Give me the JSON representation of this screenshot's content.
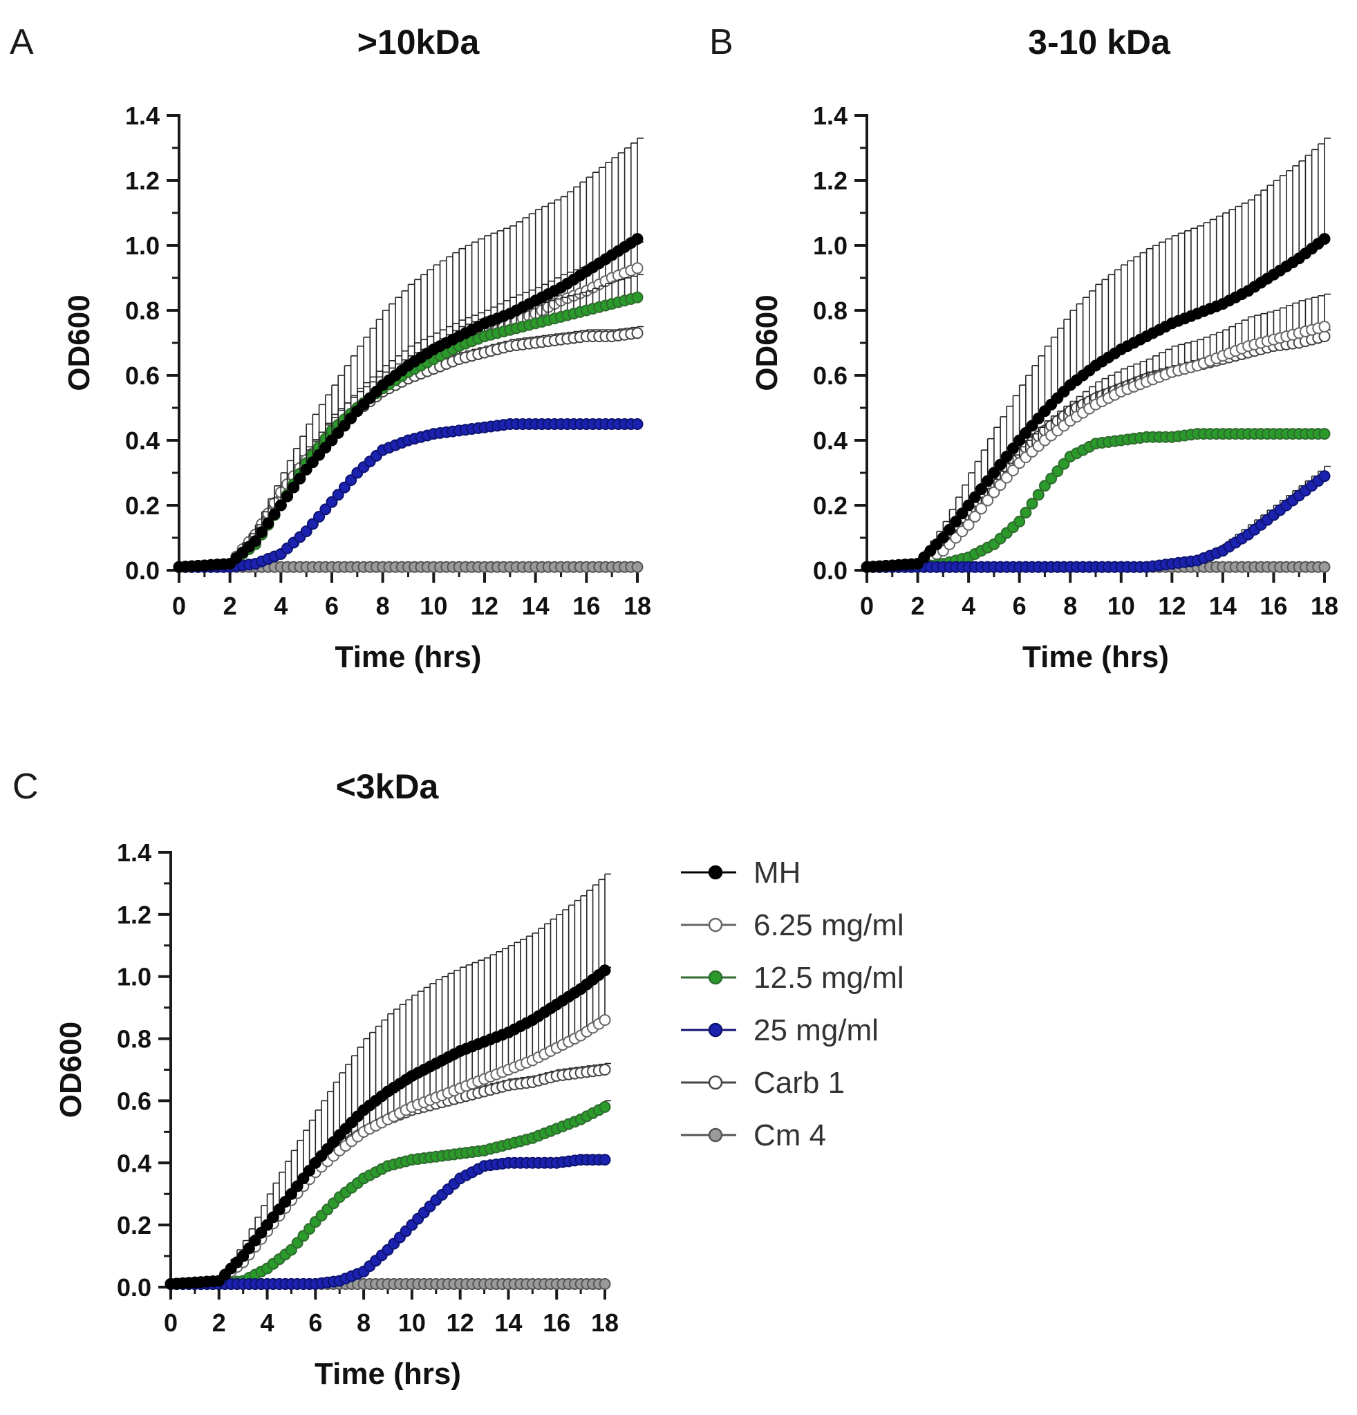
{
  "colors": {
    "MH": "#000000",
    "6.25 mg/ml": "#ffffff",
    "12.5 mg/ml": "#2a9a2a",
    "25 mg/ml": "#1c22b0",
    "Carb 1": "#ffffff",
    "Cm 4": "#9a9a9a",
    "axis": "#1a1a1a"
  },
  "legend": {
    "items": [
      {
        "label": "MH",
        "marker": "filled-circle",
        "color": "#000000"
      },
      {
        "label": "6.25 mg/ml",
        "marker": "open-circle",
        "color": "#ffffff"
      },
      {
        "label": "12.5 mg/ml",
        "marker": "filled-circle",
        "color": "#2a9a2a"
      },
      {
        "label": "25 mg/ml",
        "marker": "filled-circle",
        "color": "#1c22b0"
      },
      {
        "label": "Carb 1",
        "marker": "open-circle",
        "color": "#ffffff"
      },
      {
        "label": "Cm 4",
        "marker": "filled-circle",
        "color": "#9a9a9a"
      }
    ]
  },
  "chart_data": [
    {
      "type": "line",
      "panel": "A",
      "title": ">10kDa",
      "xlabel": "Time (hrs)",
      "ylabel": "OD600",
      "xlim": [
        0,
        18
      ],
      "ylim": [
        0,
        1.4
      ],
      "xticks": [
        "0",
        "2",
        "4",
        "6",
        "8",
        "10",
        "12",
        "14",
        "16",
        "18"
      ],
      "yticks": [
        "0.0",
        "0.2",
        "0.4",
        "0.6",
        "0.8",
        "1.0",
        "1.2",
        "1.4"
      ],
      "x": [
        0,
        2,
        3,
        4,
        5,
        6,
        7,
        8,
        9,
        10,
        11,
        12,
        13,
        14,
        15,
        16,
        17,
        18
      ],
      "series": [
        {
          "name": "MH",
          "values": [
            0.01,
            0.02,
            0.09,
            0.2,
            0.31,
            0.4,
            0.49,
            0.57,
            0.63,
            0.68,
            0.72,
            0.76,
            0.79,
            0.83,
            0.87,
            0.92,
            0.97,
            1.02
          ],
          "err": [
            0,
            0.01,
            0.05,
            0.1,
            0.14,
            0.17,
            0.2,
            0.23,
            0.25,
            0.26,
            0.27,
            0.27,
            0.27,
            0.28,
            0.28,
            0.29,
            0.3,
            0.31
          ]
        },
        {
          "name": "6.25 mg/ml",
          "values": [
            0.01,
            0.02,
            0.11,
            0.24,
            0.34,
            0.42,
            0.5,
            0.56,
            0.61,
            0.65,
            0.69,
            0.72,
            0.76,
            0.79,
            0.83,
            0.86,
            0.9,
            0.93
          ],
          "err": [
            0,
            0.01,
            0.02,
            0.03,
            0.04,
            0.05,
            0.06,
            0.07,
            0.08,
            0.08,
            0.08,
            0.08,
            0.08,
            0.08,
            0.08,
            0.08,
            0.08,
            0.08
          ]
        },
        {
          "name": "12.5 mg/ml",
          "values": [
            0.01,
            0.02,
            0.08,
            0.2,
            0.33,
            0.43,
            0.5,
            0.56,
            0.61,
            0.65,
            0.69,
            0.72,
            0.74,
            0.76,
            0.78,
            0.8,
            0.82,
            0.84
          ],
          "err": [
            0,
            0.01,
            0.02,
            0.03,
            0.04,
            0.05,
            0.05,
            0.05,
            0.05,
            0.05,
            0.06,
            0.06,
            0.06,
            0.06,
            0.06,
            0.06,
            0.07,
            0.07
          ]
        },
        {
          "name": "25 mg/ml",
          "values": [
            0.01,
            0.01,
            0.02,
            0.05,
            0.12,
            0.21,
            0.3,
            0.37,
            0.4,
            0.42,
            0.43,
            0.44,
            0.45,
            0.45,
            0.45,
            0.45,
            0.45,
            0.45
          ],
          "err": [
            0,
            0,
            0,
            0,
            0,
            0,
            0,
            0,
            0,
            0,
            0,
            0,
            0,
            0,
            0,
            0,
            0,
            0
          ]
        },
        {
          "name": "Carb 1",
          "values": [
            0.01,
            0.02,
            0.1,
            0.22,
            0.32,
            0.41,
            0.49,
            0.55,
            0.59,
            0.62,
            0.65,
            0.67,
            0.69,
            0.7,
            0.71,
            0.72,
            0.72,
            0.73
          ],
          "err": [
            0,
            0.01,
            0.01,
            0.02,
            0.02,
            0.02,
            0.02,
            0.02,
            0.02,
            0.02,
            0.02,
            0.02,
            0.02,
            0.02,
            0.02,
            0.02,
            0.02,
            0.02
          ]
        },
        {
          "name": "Cm 4",
          "values": [
            0.01,
            0.01,
            0.01,
            0.01,
            0.01,
            0.01,
            0.01,
            0.01,
            0.01,
            0.01,
            0.01,
            0.01,
            0.01,
            0.01,
            0.01,
            0.01,
            0.01,
            0.01
          ],
          "err": [
            0,
            0,
            0,
            0,
            0,
            0,
            0,
            0,
            0,
            0,
            0,
            0,
            0,
            0,
            0,
            0,
            0,
            0
          ]
        }
      ]
    },
    {
      "type": "line",
      "panel": "B",
      "title": "3-10 kDa",
      "xlabel": "Time (hrs)",
      "ylabel": "OD600",
      "xlim": [
        0,
        18
      ],
      "ylim": [
        0,
        1.4
      ],
      "xticks": [
        "0",
        "2",
        "4",
        "6",
        "8",
        "10",
        "12",
        "14",
        "16",
        "18"
      ],
      "yticks": [
        "0.0",
        "0.2",
        "0.4",
        "0.6",
        "0.8",
        "1.0",
        "1.2",
        "1.4"
      ],
      "x": [
        0,
        2,
        3,
        4,
        5,
        6,
        7,
        8,
        9,
        10,
        11,
        12,
        13,
        14,
        15,
        16,
        17,
        18
      ],
      "series": [
        {
          "name": "MH",
          "values": [
            0.01,
            0.02,
            0.1,
            0.2,
            0.3,
            0.4,
            0.49,
            0.57,
            0.63,
            0.68,
            0.72,
            0.76,
            0.79,
            0.82,
            0.86,
            0.91,
            0.96,
            1.02
          ],
          "err": [
            0,
            0.01,
            0.05,
            0.1,
            0.14,
            0.17,
            0.2,
            0.23,
            0.25,
            0.26,
            0.27,
            0.27,
            0.27,
            0.28,
            0.28,
            0.29,
            0.3,
            0.31
          ]
        },
        {
          "name": "6.25 mg/ml",
          "values": [
            0.01,
            0.02,
            0.06,
            0.14,
            0.24,
            0.33,
            0.4,
            0.46,
            0.51,
            0.55,
            0.58,
            0.61,
            0.63,
            0.66,
            0.69,
            0.71,
            0.73,
            0.75
          ],
          "err": [
            0,
            0.01,
            0.02,
            0.03,
            0.04,
            0.05,
            0.06,
            0.06,
            0.07,
            0.07,
            0.07,
            0.08,
            0.08,
            0.08,
            0.09,
            0.09,
            0.1,
            0.1
          ]
        },
        {
          "name": "12.5 mg/ml",
          "values": [
            0.01,
            0.01,
            0.02,
            0.04,
            0.08,
            0.15,
            0.26,
            0.35,
            0.39,
            0.4,
            0.41,
            0.41,
            0.42,
            0.42,
            0.42,
            0.42,
            0.42,
            0.42
          ],
          "err": [
            0,
            0,
            0,
            0,
            0,
            0,
            0,
            0,
            0,
            0,
            0,
            0,
            0,
            0,
            0,
            0,
            0,
            0
          ]
        },
        {
          "name": "25 mg/ml",
          "values": [
            0.01,
            0.01,
            0.01,
            0.01,
            0.01,
            0.01,
            0.01,
            0.01,
            0.01,
            0.01,
            0.01,
            0.02,
            0.03,
            0.06,
            0.11,
            0.17,
            0.23,
            0.29
          ],
          "err": [
            0,
            0,
            0,
            0,
            0,
            0,
            0,
            0,
            0,
            0,
            0,
            0,
            0.01,
            0.02,
            0.03,
            0.03,
            0.03,
            0.03
          ]
        },
        {
          "name": "Carb 1",
          "values": [
            0.01,
            0.02,
            0.08,
            0.17,
            0.27,
            0.36,
            0.43,
            0.49,
            0.53,
            0.56,
            0.59,
            0.61,
            0.63,
            0.65,
            0.67,
            0.69,
            0.7,
            0.72
          ],
          "err": [
            0,
            0.01,
            0.01,
            0.02,
            0.02,
            0.02,
            0.02,
            0.02,
            0.02,
            0.02,
            0.02,
            0.02,
            0.02,
            0.02,
            0.02,
            0.02,
            0.02,
            0.02
          ]
        },
        {
          "name": "Cm 4",
          "values": [
            0.01,
            0.01,
            0.01,
            0.01,
            0.01,
            0.01,
            0.01,
            0.01,
            0.01,
            0.01,
            0.01,
            0.01,
            0.01,
            0.01,
            0.01,
            0.01,
            0.01,
            0.01
          ],
          "err": [
            0,
            0,
            0,
            0,
            0,
            0,
            0,
            0,
            0,
            0,
            0,
            0,
            0,
            0,
            0,
            0,
            0,
            0
          ]
        }
      ]
    },
    {
      "type": "line",
      "panel": "C",
      "title": "<3kDa",
      "xlabel": "Time (hrs)",
      "ylabel": "OD600",
      "xlim": [
        0,
        18
      ],
      "ylim": [
        0,
        1.4
      ],
      "xticks": [
        "0",
        "2",
        "4",
        "6",
        "8",
        "10",
        "12",
        "14",
        "16",
        "18"
      ],
      "yticks": [
        "0.0",
        "0.2",
        "0.4",
        "0.6",
        "0.8",
        "1.0",
        "1.2",
        "1.4"
      ],
      "x": [
        0,
        2,
        3,
        4,
        5,
        6,
        7,
        8,
        9,
        10,
        11,
        12,
        13,
        14,
        15,
        16,
        17,
        18
      ],
      "series": [
        {
          "name": "MH",
          "values": [
            0.01,
            0.02,
            0.1,
            0.2,
            0.3,
            0.4,
            0.49,
            0.57,
            0.63,
            0.68,
            0.72,
            0.76,
            0.79,
            0.82,
            0.86,
            0.91,
            0.96,
            1.02
          ],
          "err": [
            0,
            0.01,
            0.05,
            0.1,
            0.14,
            0.17,
            0.2,
            0.23,
            0.25,
            0.26,
            0.27,
            0.27,
            0.27,
            0.28,
            0.28,
            0.29,
            0.3,
            0.31
          ]
        },
        {
          "name": "6.25 mg/ml",
          "values": [
            0.01,
            0.02,
            0.08,
            0.18,
            0.28,
            0.37,
            0.44,
            0.5,
            0.54,
            0.58,
            0.61,
            0.64,
            0.67,
            0.7,
            0.73,
            0.77,
            0.81,
            0.86
          ],
          "err": [
            0,
            0.01,
            0.02,
            0.03,
            0.04,
            0.05,
            0.06,
            0.07,
            0.08,
            0.09,
            0.1,
            0.11,
            0.12,
            0.13,
            0.14,
            0.15,
            0.16,
            0.17
          ]
        },
        {
          "name": "12.5 mg/ml",
          "values": [
            0.01,
            0.01,
            0.02,
            0.06,
            0.12,
            0.21,
            0.29,
            0.35,
            0.39,
            0.41,
            0.42,
            0.43,
            0.44,
            0.46,
            0.48,
            0.51,
            0.54,
            0.58
          ],
          "err": [
            0,
            0,
            0,
            0,
            0,
            0,
            0,
            0,
            0,
            0,
            0,
            0,
            0,
            0,
            0.01,
            0.01,
            0.01,
            0.02
          ]
        },
        {
          "name": "25 mg/ml",
          "values": [
            0.01,
            0.01,
            0.01,
            0.01,
            0.01,
            0.01,
            0.02,
            0.05,
            0.12,
            0.2,
            0.28,
            0.35,
            0.39,
            0.4,
            0.4,
            0.4,
            0.41,
            0.41
          ],
          "err": [
            0,
            0,
            0,
            0,
            0,
            0,
            0,
            0,
            0,
            0,
            0,
            0,
            0,
            0,
            0,
            0,
            0,
            0
          ]
        },
        {
          "name": "Carb 1",
          "values": [
            0.01,
            0.02,
            0.09,
            0.19,
            0.29,
            0.38,
            0.45,
            0.5,
            0.54,
            0.57,
            0.59,
            0.61,
            0.63,
            0.65,
            0.66,
            0.68,
            0.69,
            0.7
          ],
          "err": [
            0,
            0.01,
            0.01,
            0.02,
            0.02,
            0.02,
            0.02,
            0.02,
            0.02,
            0.02,
            0.02,
            0.02,
            0.02,
            0.02,
            0.02,
            0.02,
            0.02,
            0.02
          ]
        },
        {
          "name": "Cm 4",
          "values": [
            0.01,
            0.01,
            0.01,
            0.01,
            0.01,
            0.01,
            0.01,
            0.01,
            0.01,
            0.01,
            0.01,
            0.01,
            0.01,
            0.01,
            0.01,
            0.01,
            0.01,
            0.01
          ],
          "err": [
            0,
            0,
            0,
            0,
            0,
            0,
            0,
            0,
            0,
            0,
            0,
            0,
            0,
            0,
            0,
            0,
            0,
            0
          ]
        }
      ]
    }
  ]
}
